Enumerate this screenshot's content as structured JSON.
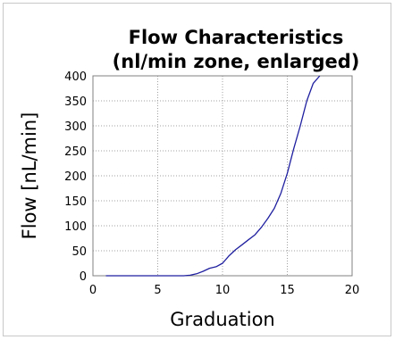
{
  "chart_data": {
    "type": "line",
    "title_line1": "Flow Characteristics",
    "title_line2": "(nl/min zone, enlarged)",
    "xlabel": "Graduation",
    "ylabel": "Flow [nL/min]",
    "xlim": [
      0,
      20
    ],
    "ylim": [
      0,
      400
    ],
    "xticks": [
      "0",
      "5",
      "10",
      "15",
      "20"
    ],
    "yticks": [
      "0",
      "50",
      "100",
      "150",
      "200",
      "250",
      "300",
      "350",
      "400"
    ],
    "grid": true,
    "series": [
      {
        "color": "#1f1fa0",
        "x": [
          1,
          2,
          3,
          4,
          5,
          6,
          7,
          7.5,
          8,
          8.5,
          9,
          9.5,
          10,
          10.5,
          11,
          11.5,
          12,
          12.5,
          13,
          13.5,
          14,
          14.5,
          15,
          15.5,
          16,
          16.5,
          17,
          17.5
        ],
        "y": [
          0,
          0,
          0,
          0,
          0,
          0,
          0,
          1,
          4,
          9,
          15,
          18,
          25,
          40,
          52,
          62,
          72,
          82,
          97,
          115,
          135,
          165,
          205,
          255,
          300,
          350,
          385,
          400
        ]
      }
    ]
  }
}
